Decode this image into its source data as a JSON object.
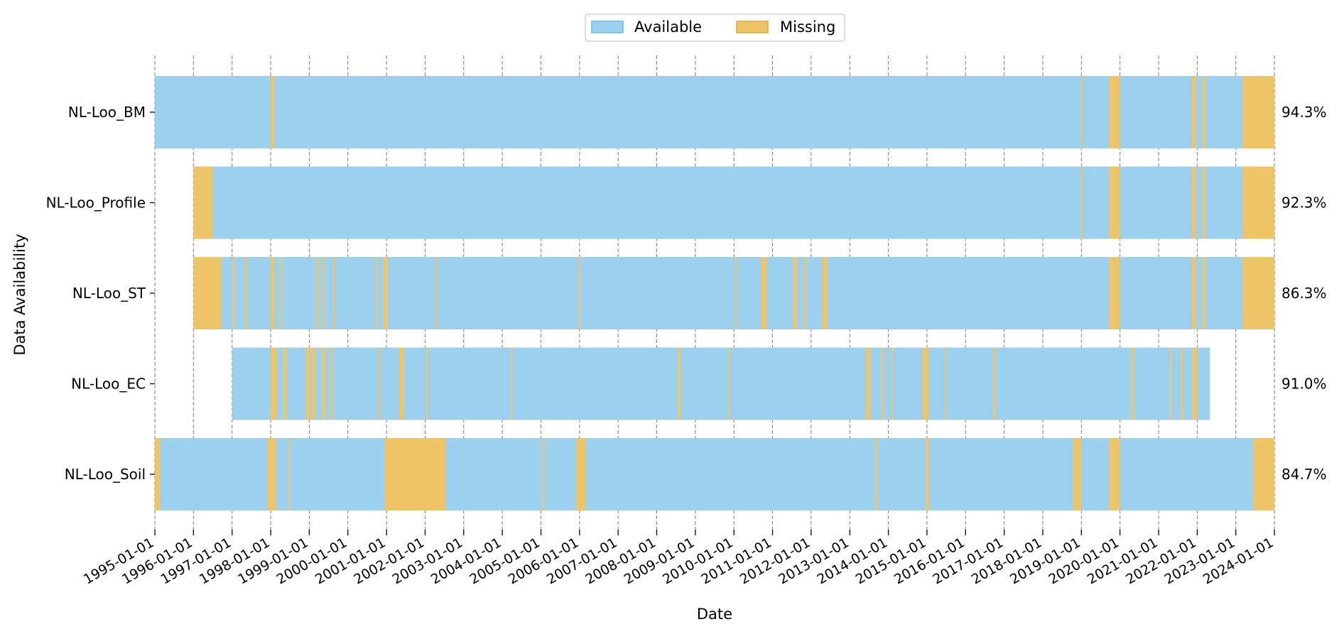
{
  "chart_data": {
    "type": "timeline",
    "xlabel": "Date",
    "ylabel": "Data Availability",
    "xlim": [
      "1995-01-01",
      "2024-01-01"
    ],
    "x_ticks": [
      "1995-01-01",
      "1996-01-01",
      "1997-01-01",
      "1998-01-01",
      "1999-01-01",
      "2000-01-01",
      "2001-01-01",
      "2002-01-01",
      "2003-01-01",
      "2004-01-01",
      "2005-01-01",
      "2006-01-01",
      "2007-01-01",
      "2008-01-01",
      "2009-01-01",
      "2010-01-01",
      "2011-01-01",
      "2012-01-01",
      "2013-01-01",
      "2014-01-01",
      "2015-01-01",
      "2016-01-01",
      "2017-01-01",
      "2018-01-01",
      "2019-01-01",
      "2020-01-01",
      "2021-01-01",
      "2022-01-01",
      "2023-01-01",
      "2024-01-01"
    ],
    "grid": "vertical dashed at each year",
    "legend": {
      "placement": "top-center",
      "entries": [
        {
          "label": "Available",
          "color": "#9bd0ef",
          "edge": "#6ab9e6"
        },
        {
          "label": "Missing",
          "color": "#efc466",
          "edge": "#d9a93c"
        }
      ]
    },
    "series": [
      {
        "name": "NL-Loo_BM",
        "start": "1995-01-01",
        "end": "2024-01-01",
        "availability": "94.3%",
        "missing": [
          [
            "1998-01-01",
            "1998-02-05"
          ],
          [
            "2019-01-01",
            "2019-01-05"
          ],
          [
            "2019-09-20",
            "2019-12-31"
          ],
          [
            "2021-11-10",
            "2021-12-20"
          ],
          [
            "2022-02-20",
            "2022-03-20"
          ],
          [
            "2023-03-05",
            "2024-01-01"
          ]
        ]
      },
      {
        "name": "NL-Loo_Profile",
        "start": "1996-01-01",
        "end": "2024-01-01",
        "availability": "92.3%",
        "missing": [
          [
            "1996-01-01",
            "1996-07-01"
          ],
          [
            "2019-01-01",
            "2019-01-05"
          ],
          [
            "2019-09-20",
            "2019-12-31"
          ],
          [
            "2021-11-10",
            "2021-12-20"
          ],
          [
            "2022-02-20",
            "2022-03-20"
          ],
          [
            "2023-03-05",
            "2024-01-01"
          ]
        ]
      },
      {
        "name": "NL-Loo_ST",
        "start": "1996-01-01",
        "end": "2024-01-01",
        "availability": "86.3%",
        "missing": [
          [
            "1996-01-01",
            "1996-09-20"
          ],
          [
            "1997-01-05",
            "1997-01-25"
          ],
          [
            "1997-05-01",
            "1997-05-20"
          ],
          [
            "1998-01-01",
            "1998-02-05"
          ],
          [
            "1998-04-05",
            "1998-04-20"
          ],
          [
            "1999-03-01",
            "1999-03-20"
          ],
          [
            "1999-05-01",
            "1999-05-20"
          ],
          [
            "1999-08-15",
            "1999-09-01"
          ],
          [
            "2000-09-20",
            "2000-10-05"
          ],
          [
            "2000-12-01",
            "2001-01-10"
          ],
          [
            "2002-04-10",
            "2002-04-22"
          ],
          [
            "2005-12-20",
            "2006-01-05"
          ],
          [
            "2010-01-10",
            "2010-01-25"
          ],
          [
            "2010-09-15",
            "2010-11-05"
          ],
          [
            "2011-07-15",
            "2011-08-20"
          ],
          [
            "2011-10-25",
            "2011-11-15"
          ],
          [
            "2012-04-15",
            "2012-06-01"
          ],
          [
            "2019-09-20",
            "2019-12-31"
          ],
          [
            "2021-11-10",
            "2021-12-20"
          ],
          [
            "2022-02-20",
            "2022-03-20"
          ],
          [
            "2023-03-05",
            "2024-01-01"
          ]
        ]
      },
      {
        "name": "NL-Loo_EC",
        "start": "1997-01-01",
        "end": "2022-05-01",
        "availability": "91.0%",
        "missing": [
          [
            "1998-01-01",
            "1998-03-01"
          ],
          [
            "1998-05-01",
            "1998-06-01"
          ],
          [
            "1998-12-01",
            "1999-01-05"
          ],
          [
            "1999-01-20",
            "1999-03-01"
          ],
          [
            "1999-05-01",
            "1999-06-01"
          ],
          [
            "1999-07-20",
            "1999-08-10"
          ],
          [
            "2000-10-15",
            "2000-11-01"
          ],
          [
            "2001-05-01",
            "2001-06-15"
          ],
          [
            "2002-01-10",
            "2002-01-25"
          ],
          [
            "2004-03-20",
            "2004-04-01"
          ],
          [
            "2008-07-20",
            "2008-08-15"
          ],
          [
            "2009-11-10",
            "2009-11-25"
          ],
          [
            "2013-06-01",
            "2013-07-15"
          ],
          [
            "2013-11-01",
            "2013-11-20"
          ],
          [
            "2014-02-01",
            "2014-02-15"
          ],
          [
            "2014-11-20",
            "2015-01-15"
          ],
          [
            "2015-06-20",
            "2015-07-05"
          ],
          [
            "2016-09-20",
            "2016-10-10"
          ],
          [
            "2020-04-15",
            "2020-05-10"
          ],
          [
            "2021-04-20",
            "2021-05-05"
          ],
          [
            "2021-08-01",
            "2021-08-20"
          ],
          [
            "2021-11-15",
            "2021-12-31"
          ]
        ]
      },
      {
        "name": "NL-Loo_Soil",
        "start": "1995-01-01",
        "end": "2024-01-01",
        "availability": "84.7%",
        "missing": [
          [
            "1995-01-01",
            "1995-02-20"
          ],
          [
            "1997-12-01",
            "1998-02-20"
          ],
          [
            "1998-06-15",
            "1998-07-01"
          ],
          [
            "2000-12-15",
            "2002-07-15"
          ],
          [
            "2005-01-15",
            "2005-02-01"
          ],
          [
            "2005-12-01",
            "2006-03-01"
          ],
          [
            "2013-09-01",
            "2013-09-20"
          ],
          [
            "2014-12-20",
            "2015-01-20"
          ],
          [
            "2018-10-15",
            "2018-12-31"
          ],
          [
            "2019-09-20",
            "2019-12-31"
          ],
          [
            "2023-06-15",
            "2024-01-01"
          ]
        ]
      }
    ]
  }
}
